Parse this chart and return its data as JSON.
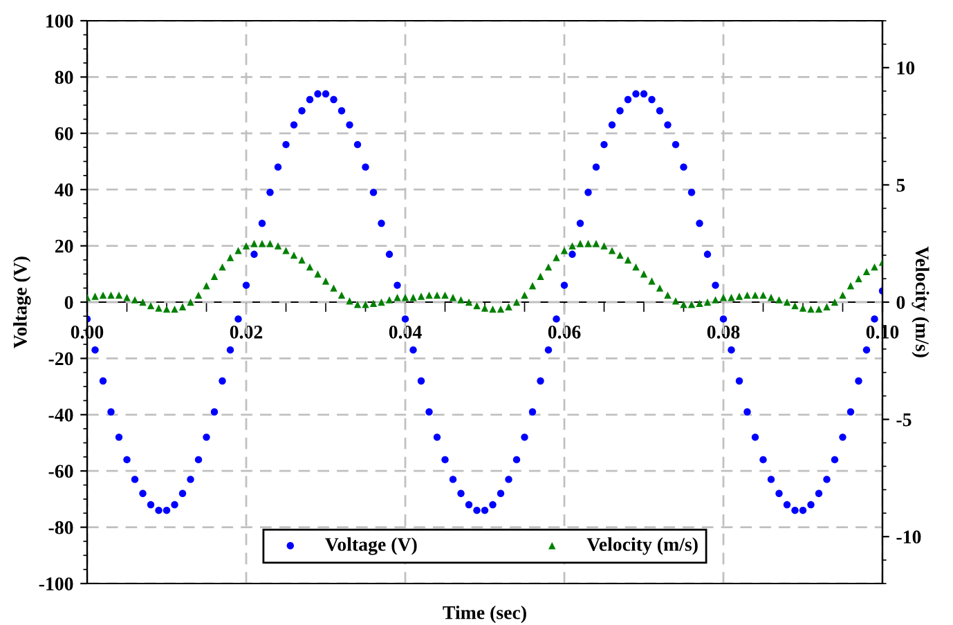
{
  "chart_data": {
    "type": "scatter",
    "xlabel": "Time (sec)",
    "ylabel": "Voltage (V)",
    "y2label": "Velocity (m/s)",
    "x": [
      0,
      0.001,
      0.002,
      0.003,
      0.004,
      0.005,
      0.006,
      0.007,
      0.008,
      0.009,
      0.01,
      0.011,
      0.012,
      0.013,
      0.014,
      0.015,
      0.016,
      0.017,
      0.018,
      0.019,
      0.02,
      0.021,
      0.022,
      0.023,
      0.024,
      0.025,
      0.026,
      0.027,
      0.028,
      0.029,
      0.03,
      0.031,
      0.032,
      0.033,
      0.034,
      0.035,
      0.036,
      0.037,
      0.038,
      0.039,
      0.04,
      0.041,
      0.042,
      0.043,
      0.044,
      0.045,
      0.046,
      0.047,
      0.048,
      0.049,
      0.05,
      0.051,
      0.052,
      0.053,
      0.054,
      0.055,
      0.056,
      0.057,
      0.058,
      0.059,
      0.06,
      0.061,
      0.062,
      0.063,
      0.064,
      0.065,
      0.066,
      0.067,
      0.068,
      0.069,
      0.07,
      0.071,
      0.072,
      0.073,
      0.074,
      0.075,
      0.076,
      0.077,
      0.078,
      0.079,
      0.08,
      0.081,
      0.082,
      0.083,
      0.084,
      0.085,
      0.086,
      0.087,
      0.088,
      0.089,
      0.09,
      0.091,
      0.092,
      0.093,
      0.094,
      0.095,
      0.096,
      0.097,
      0.098,
      0.099,
      0.1
    ],
    "series": [
      {
        "name": "Voltage (V)",
        "color": "#0000ff",
        "marker": "circle",
        "values": [
          -6,
          -17,
          -28,
          -39,
          -48,
          -56,
          -63,
          -68,
          -72,
          -74,
          -74,
          -72,
          -68,
          -63,
          -56,
          -48,
          -39,
          -28,
          -17,
          -6,
          6,
          17,
          28,
          39,
          48,
          56,
          63,
          68,
          72,
          74,
          74,
          72,
          68,
          63,
          56,
          48,
          39,
          28,
          17,
          6,
          -6,
          -17,
          -28,
          -39,
          -48,
          -56,
          -63,
          -68,
          -72,
          -74,
          -74,
          -72,
          -68,
          -63,
          -56,
          -48,
          -39,
          -28,
          -17,
          -6,
          6,
          17,
          28,
          39,
          48,
          56,
          63,
          68,
          72,
          74,
          74,
          72,
          68,
          63,
          56,
          48,
          39,
          28,
          17,
          6,
          -6,
          -17,
          -28,
          -39,
          -48,
          -56,
          -63,
          -68,
          -72,
          -74,
          -74,
          -72,
          -68,
          -63,
          -56,
          -48,
          -39,
          -28,
          -17,
          -6,
          4
        ]
      },
      {
        "name": "Velocity (m/s)",
        "color": "#008000",
        "marker": "triangle",
        "axis": "y2",
        "values": [
          0.2,
          0.25,
          0.3,
          0.3,
          0.3,
          0.2,
          0.1,
          0,
          -0.15,
          -0.25,
          -0.3,
          -0.3,
          -0.2,
          0,
          0.3,
          0.7,
          1.1,
          1.5,
          1.9,
          2.2,
          2.4,
          2.5,
          2.5,
          2.5,
          2.4,
          2.2,
          2.0,
          1.8,
          1.5,
          1.2,
          0.9,
          0.6,
          0.3,
          0.05,
          -0.1,
          -0.1,
          -0.05,
          0,
          0.1,
          0.2,
          0.2,
          0.2,
          0.25,
          0.3,
          0.3,
          0.3,
          0.2,
          0.1,
          0,
          -0.15,
          -0.25,
          -0.3,
          -0.3,
          -0.2,
          0,
          0.3,
          0.7,
          1.1,
          1.5,
          1.9,
          2.2,
          2.4,
          2.5,
          2.5,
          2.5,
          2.4,
          2.2,
          2.0,
          1.8,
          1.5,
          1.2,
          0.9,
          0.6,
          0.3,
          0.05,
          -0.1,
          -0.1,
          -0.05,
          0,
          0.1,
          0.2,
          0.2,
          0.25,
          0.3,
          0.3,
          0.3,
          0.2,
          0.1,
          0,
          -0.15,
          -0.25,
          -0.3,
          -0.3,
          -0.2,
          0,
          0.3,
          0.7,
          1.0,
          1.3,
          1.5,
          1.7
        ]
      }
    ],
    "xlim": [
      0,
      0.1
    ],
    "xticks": [
      {
        "value": 0,
        "label": "0.00"
      },
      0.02,
      0.04,
      0.06,
      0.08,
      {
        "value": 0.1,
        "label": "0.10"
      }
    ],
    "ylim": [
      -100,
      100
    ],
    "yticks": [
      -100,
      -80,
      -60,
      -40,
      -20,
      0,
      20,
      40,
      60,
      80,
      100
    ],
    "y2lim": [
      -12,
      12
    ],
    "y2ticks": [
      -10,
      -5,
      0,
      5,
      10
    ],
    "grid": true,
    "legend": "bottom"
  }
}
